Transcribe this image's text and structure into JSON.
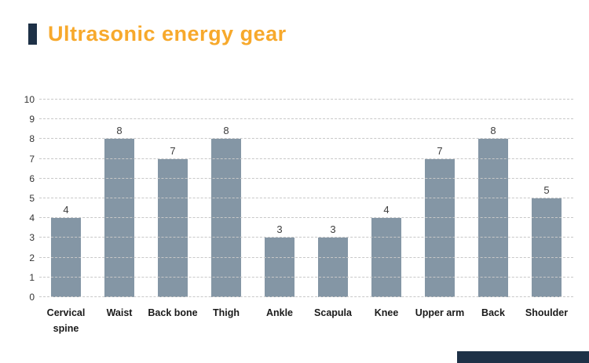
{
  "header": {
    "title": "Ultrasonic energy gear"
  },
  "colors": {
    "title": "#F7A92C",
    "accent": "#1E3147",
    "bar": "#8496A5",
    "gridline": "#C8C8C8"
  },
  "chart_data": {
    "type": "bar",
    "title": "Ultrasonic energy gear",
    "categories": [
      "Cervical spine",
      "Waist",
      "Back bone",
      "Thigh",
      "Ankle",
      "Scapula",
      "Knee",
      "Upper arm",
      "Back",
      "Shoulder"
    ],
    "values": [
      4,
      8,
      7,
      8,
      3,
      3,
      4,
      7,
      8,
      5
    ],
    "xlabel": "",
    "ylabel": "",
    "ylim": [
      0,
      10
    ],
    "ytick_step": 1,
    "grid": "dashed-horizontal",
    "value_labels": true,
    "legend": "none"
  }
}
